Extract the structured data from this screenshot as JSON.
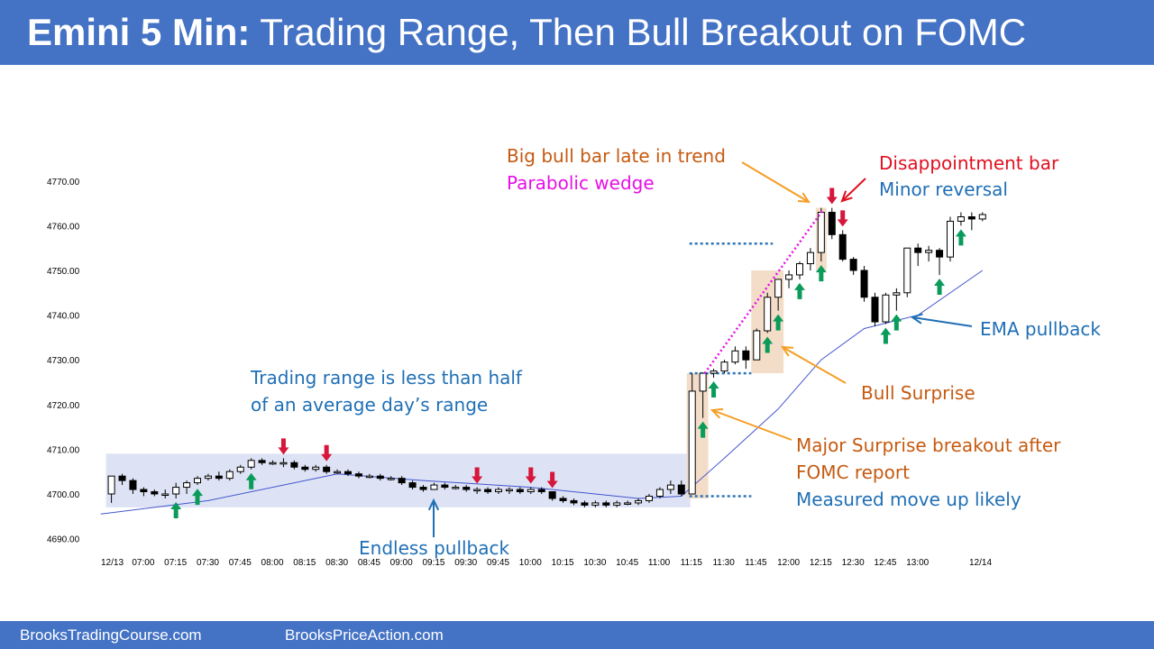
{
  "title": {
    "bold": "Emini 5 Min:",
    "rest": " Trading Range, Then Bull Breakout on FOMC"
  },
  "footer": {
    "left": "BrooksTradingCourse.com",
    "right": "BrooksPriceAction.com"
  },
  "colors": {
    "header": "#4472c4",
    "bull_arrow": "#0a9b5a",
    "bear_arrow": "#d6163a",
    "ema": "#4455cc",
    "range_box": "#dde3f5",
    "highlight": "#f3ddc8",
    "orange_text": "#c55a11",
    "blue_text": "#1f6fb5",
    "magenta": "#e60fe6"
  },
  "chart_data": {
    "type": "candlestick",
    "y_ticks": [
      "4770.00",
      "4760.00",
      "4750.00",
      "4740.00",
      "4730.00",
      "4720.00",
      "4710.00",
      "4700.00",
      "4690.00"
    ],
    "ylim": [
      4690,
      4770
    ],
    "x_ticks": [
      "12/13",
      "07:00",
      "07:15",
      "07:30",
      "07:45",
      "08:00",
      "08:15",
      "08:30",
      "08:45",
      "09:00",
      "09:15",
      "09:30",
      "09:45",
      "10:00",
      "10:15",
      "10:30",
      "10:45",
      "11:00",
      "11:15",
      "11:30",
      "11:45",
      "12:00",
      "12:15",
      "12:30",
      "12:45",
      "13:00",
      "12/14"
    ],
    "candles": [
      {
        "time": "06:45",
        "o": 4700.0,
        "h": 4704.0,
        "l": 4698.0,
        "c": 4704.0
      },
      {
        "time": "06:50",
        "o": 4704.0,
        "h": 4704.5,
        "l": 4702.0,
        "c": 4703.0
      },
      {
        "time": "06:55",
        "o": 4703.0,
        "h": 4703.5,
        "l": 4700.0,
        "c": 4701.0
      },
      {
        "time": "07:00",
        "o": 4701.0,
        "h": 4701.5,
        "l": 4699.5,
        "c": 4700.5
      },
      {
        "time": "07:05",
        "o": 4700.5,
        "h": 4701.0,
        "l": 4699.5,
        "c": 4700.0
      },
      {
        "time": "07:10",
        "o": 4700.0,
        "h": 4701.0,
        "l": 4699.0,
        "c": 4700.0
      },
      {
        "time": "07:15",
        "o": 4700.0,
        "h": 4702.5,
        "l": 4699.0,
        "c": 4701.5
      },
      {
        "time": "07:20",
        "o": 4701.5,
        "h": 4703.0,
        "l": 4700.0,
        "c": 4702.5
      },
      {
        "time": "07:25",
        "o": 4702.5,
        "h": 4704.0,
        "l": 4702.0,
        "c": 4703.5
      },
      {
        "time": "07:30",
        "o": 4703.5,
        "h": 4704.5,
        "l": 4703.0,
        "c": 4704.0
      },
      {
        "time": "07:35",
        "o": 4704.0,
        "h": 4705.0,
        "l": 4703.0,
        "c": 4703.5
      },
      {
        "time": "07:40",
        "o": 4703.5,
        "h": 4705.5,
        "l": 4703.0,
        "c": 4705.0
      },
      {
        "time": "07:45",
        "o": 4705.0,
        "h": 4706.5,
        "l": 4704.5,
        "c": 4706.0
      },
      {
        "time": "07:50",
        "o": 4706.0,
        "h": 4708.0,
        "l": 4705.5,
        "c": 4707.5
      },
      {
        "time": "07:55",
        "o": 4707.5,
        "h": 4708.0,
        "l": 4706.5,
        "c": 4707.0
      },
      {
        "time": "08:00",
        "o": 4707.0,
        "h": 4707.5,
        "l": 4706.5,
        "c": 4707.0
      },
      {
        "time": "08:05",
        "o": 4707.0,
        "h": 4708.0,
        "l": 4706.0,
        "c": 4707.0
      },
      {
        "time": "08:10",
        "o": 4707.0,
        "h": 4707.5,
        "l": 4705.5,
        "c": 4706.0
      },
      {
        "time": "08:15",
        "o": 4706.0,
        "h": 4706.5,
        "l": 4705.0,
        "c": 4705.5
      },
      {
        "time": "08:20",
        "o": 4705.5,
        "h": 4706.5,
        "l": 4705.0,
        "c": 4706.0
      },
      {
        "time": "08:25",
        "o": 4706.0,
        "h": 4706.5,
        "l": 4704.5,
        "c": 4705.0
      },
      {
        "time": "08:30",
        "o": 4705.0,
        "h": 4705.5,
        "l": 4704.5,
        "c": 4705.0
      },
      {
        "time": "08:35",
        "o": 4705.0,
        "h": 4705.5,
        "l": 4704.0,
        "c": 4704.5
      },
      {
        "time": "08:40",
        "o": 4704.5,
        "h": 4705.0,
        "l": 4703.5,
        "c": 4704.0
      },
      {
        "time": "08:45",
        "o": 4704.0,
        "h": 4704.5,
        "l": 4703.5,
        "c": 4704.0
      },
      {
        "time": "08:50",
        "o": 4704.0,
        "h": 4704.5,
        "l": 4703.0,
        "c": 4703.5
      },
      {
        "time": "08:55",
        "o": 4703.5,
        "h": 4704.0,
        "l": 4703.0,
        "c": 4703.5
      },
      {
        "time": "09:00",
        "o": 4703.5,
        "h": 4704.0,
        "l": 4702.0,
        "c": 4702.5
      },
      {
        "time": "09:05",
        "o": 4702.5,
        "h": 4703.0,
        "l": 4701.0,
        "c": 4701.5
      },
      {
        "time": "09:10",
        "o": 4701.5,
        "h": 4702.0,
        "l": 4700.5,
        "c": 4701.0
      },
      {
        "time": "09:15",
        "o": 4701.0,
        "h": 4702.5,
        "l": 4701.0,
        "c": 4702.0
      },
      {
        "time": "09:20",
        "o": 4702.0,
        "h": 4702.5,
        "l": 4701.0,
        "c": 4701.5
      },
      {
        "time": "09:25",
        "o": 4701.5,
        "h": 4702.0,
        "l": 4701.0,
        "c": 4701.5
      },
      {
        "time": "09:30",
        "o": 4701.5,
        "h": 4702.0,
        "l": 4700.5,
        "c": 4701.0
      },
      {
        "time": "09:35",
        "o": 4701.0,
        "h": 4701.5,
        "l": 4700.0,
        "c": 4701.0
      },
      {
        "time": "09:40",
        "o": 4701.0,
        "h": 4701.5,
        "l": 4700.0,
        "c": 4700.5
      },
      {
        "time": "09:45",
        "o": 4700.5,
        "h": 4701.5,
        "l": 4700.0,
        "c": 4701.0
      },
      {
        "time": "09:50",
        "o": 4701.0,
        "h": 4701.5,
        "l": 4700.0,
        "c": 4701.0
      },
      {
        "time": "09:55",
        "o": 4701.0,
        "h": 4701.5,
        "l": 4700.0,
        "c": 4700.5
      },
      {
        "time": "10:00",
        "o": 4700.5,
        "h": 4701.5,
        "l": 4700.0,
        "c": 4701.0
      },
      {
        "time": "10:05",
        "o": 4701.0,
        "h": 4701.5,
        "l": 4700.0,
        "c": 4700.5
      },
      {
        "time": "10:10",
        "o": 4700.5,
        "h": 4700.5,
        "l": 4698.5,
        "c": 4699.0
      },
      {
        "time": "10:15",
        "o": 4699.0,
        "h": 4699.5,
        "l": 4698.0,
        "c": 4698.5
      },
      {
        "time": "10:20",
        "o": 4698.5,
        "h": 4699.0,
        "l": 4697.5,
        "c": 4698.0
      },
      {
        "time": "10:25",
        "o": 4698.0,
        "h": 4698.5,
        "l": 4697.0,
        "c": 4697.5
      },
      {
        "time": "10:30",
        "o": 4697.5,
        "h": 4698.5,
        "l": 4697.0,
        "c": 4698.0
      },
      {
        "time": "10:35",
        "o": 4698.0,
        "h": 4698.5,
        "l": 4697.0,
        "c": 4697.5
      },
      {
        "time": "10:40",
        "o": 4697.5,
        "h": 4698.5,
        "l": 4697.0,
        "c": 4698.0
      },
      {
        "time": "10:45",
        "o": 4698.0,
        "h": 4698.5,
        "l": 4697.5,
        "c": 4698.0
      },
      {
        "time": "10:50",
        "o": 4698.0,
        "h": 4699.0,
        "l": 4697.5,
        "c": 4698.5
      },
      {
        "time": "10:55",
        "o": 4698.5,
        "h": 4700.0,
        "l": 4698.0,
        "c": 4699.5
      },
      {
        "time": "11:00",
        "o": 4699.5,
        "h": 4701.5,
        "l": 4699.0,
        "c": 4701.0
      },
      {
        "time": "11:05",
        "o": 4701.0,
        "h": 4703.0,
        "l": 4700.0,
        "c": 4702.0
      },
      {
        "time": "11:10",
        "o": 4702.0,
        "h": 4703.0,
        "l": 4699.5,
        "c": 4700.0
      },
      {
        "time": "11:15",
        "o": 4700.0,
        "h": 4727.0,
        "l": 4700.0,
        "c": 4723.0
      },
      {
        "time": "11:20",
        "o": 4723.0,
        "h": 4727.0,
        "l": 4717.0,
        "c": 4727.0
      },
      {
        "time": "11:25",
        "o": 4727.0,
        "h": 4728.0,
        "l": 4726.0,
        "c": 4727.5
      },
      {
        "time": "11:30",
        "o": 4727.5,
        "h": 4730.0,
        "l": 4727.0,
        "c": 4729.5
      },
      {
        "time": "11:35",
        "o": 4729.5,
        "h": 4733.0,
        "l": 4729.0,
        "c": 4732.0
      },
      {
        "time": "11:40",
        "o": 4732.0,
        "h": 4733.0,
        "l": 4728.0,
        "c": 4730.0
      },
      {
        "time": "11:45",
        "o": 4730.0,
        "h": 4737.0,
        "l": 4730.0,
        "c": 4736.5
      },
      {
        "time": "11:50",
        "o": 4736.5,
        "h": 4745.0,
        "l": 4736.0,
        "c": 4744.0
      },
      {
        "time": "11:55",
        "o": 4744.0,
        "h": 4748.0,
        "l": 4741.0,
        "c": 4748.0
      },
      {
        "time": "12:00",
        "o": 4748.0,
        "h": 4750.0,
        "l": 4746.0,
        "c": 4749.0
      },
      {
        "time": "12:05",
        "o": 4749.0,
        "h": 4752.0,
        "l": 4748.0,
        "c": 4751.5
      },
      {
        "time": "12:10",
        "o": 4751.5,
        "h": 4755.0,
        "l": 4750.0,
        "c": 4754.0
      },
      {
        "time": "12:15",
        "o": 4754.0,
        "h": 4764.0,
        "l": 4752.0,
        "c": 4763.0
      },
      {
        "time": "12:20",
        "o": 4763.0,
        "h": 4764.0,
        "l": 4757.0,
        "c": 4758.0
      },
      {
        "time": "12:25",
        "o": 4758.0,
        "h": 4759.0,
        "l": 4752.0,
        "c": 4752.5
      },
      {
        "time": "12:30",
        "o": 4752.5,
        "h": 4753.0,
        "l": 4749.0,
        "c": 4750.0
      },
      {
        "time": "12:35",
        "o": 4750.0,
        "h": 4751.0,
        "l": 4743.0,
        "c": 4744.0
      },
      {
        "time": "12:40",
        "o": 4744.0,
        "h": 4745.0,
        "l": 4737.5,
        "c": 4738.5
      },
      {
        "time": "12:45",
        "o": 4738.5,
        "h": 4745.0,
        "l": 4738.0,
        "c": 4744.5
      },
      {
        "time": "12:50",
        "o": 4744.5,
        "h": 4746.0,
        "l": 4741.0,
        "c": 4745.0
      },
      {
        "time": "12:55",
        "o": 4745.0,
        "h": 4755.0,
        "l": 4744.0,
        "c": 4755.0
      },
      {
        "time": "13:00",
        "o": 4755.0,
        "h": 4756.0,
        "l": 4751.0,
        "c": 4754.0
      },
      {
        "time": "13:05",
        "o": 4754.0,
        "h": 4755.5,
        "l": 4752.0,
        "c": 4754.5
      },
      {
        "time": "13:10",
        "o": 4754.5,
        "h": 4755.0,
        "l": 4749.0,
        "c": 4753.0
      },
      {
        "time": "13:15",
        "o": 4753.0,
        "h": 4762.0,
        "l": 4752.0,
        "c": 4761.0
      },
      {
        "time": "13:20",
        "o": 4761.0,
        "h": 4763.0,
        "l": 4760.0,
        "c": 4762.0
      },
      {
        "time": "13:25",
        "o": 4762.0,
        "h": 4763.0,
        "l": 4759.0,
        "c": 4761.5
      },
      {
        "time": "13:30",
        "o": 4761.5,
        "h": 4763.0,
        "l": 4761.0,
        "c": 4762.5
      }
    ],
    "ema": [
      {
        "time": "06:40",
        "v": 4695.5
      },
      {
        "time": "07:30",
        "v": 4698.5
      },
      {
        "time": "08:30",
        "v": 4704.5
      },
      {
        "time": "09:10",
        "v": 4703.0
      },
      {
        "time": "10:00",
        "v": 4701.5
      },
      {
        "time": "10:50",
        "v": 4699.0
      },
      {
        "time": "11:10",
        "v": 4699.5
      },
      {
        "time": "11:30",
        "v": 4708.0
      },
      {
        "time": "11:55",
        "v": 4719.0
      },
      {
        "time": "12:15",
        "v": 4730.0
      },
      {
        "time": "12:35",
        "v": 4737.0
      },
      {
        "time": "13:00",
        "v": 4740.0
      },
      {
        "time": "13:30",
        "v": 4750.0
      }
    ],
    "bull_arrows": [
      "07:15",
      "07:25",
      "07:50",
      "11:20",
      "11:25",
      "11:50",
      "11:55",
      "12:05",
      "12:15",
      "12:45",
      "12:50",
      "13:10",
      "13:20"
    ],
    "bear_arrows": [
      "08:05",
      "08:25",
      "09:35",
      "10:00",
      "10:10",
      "12:20",
      "12:25"
    ],
    "trading_range_box": {
      "start": "06:45",
      "end": "11:15",
      "low": 4697.0,
      "high": 4709.0
    },
    "highlight_boxes": [
      {
        "start": "11:15",
        "end": "11:20",
        "low": 4699.0,
        "high": 4727.0
      },
      {
        "start": "11:45",
        "end": "11:55",
        "low": 4727.0,
        "high": 4750.0
      },
      {
        "start": "12:15",
        "end": "12:15",
        "low": 4750.0,
        "high": 4764.0
      }
    ],
    "levels": [
      {
        "value": 4756.0,
        "start": "11:15",
        "end": "11:50"
      },
      {
        "value": 4727.0,
        "start": "11:15",
        "end": "11:40"
      },
      {
        "value": 4699.5,
        "start": "11:15",
        "end": "11:40"
      }
    ],
    "wedge_line": {
      "from": {
        "time": "11:20",
        "v": 4727.0
      },
      "to": {
        "time": "12:15",
        "v": 4763.5
      }
    },
    "annotations": {
      "big_bull": "Big bull bar late in trend",
      "parabolic": "Parabolic wedge",
      "disappointment": "Disappointment bar",
      "minor_reversal": "Minor reversal",
      "trading_range_1": "Trading range is less than half",
      "trading_range_2": "of an average day’s range",
      "endless": "Endless pullback",
      "ema_pullback": "EMA pullback",
      "bull_surprise": "Bull Surprise",
      "major_1": "Major Surprise breakout after",
      "major_2": "FOMC report",
      "measured": "Measured move up likely"
    }
  }
}
